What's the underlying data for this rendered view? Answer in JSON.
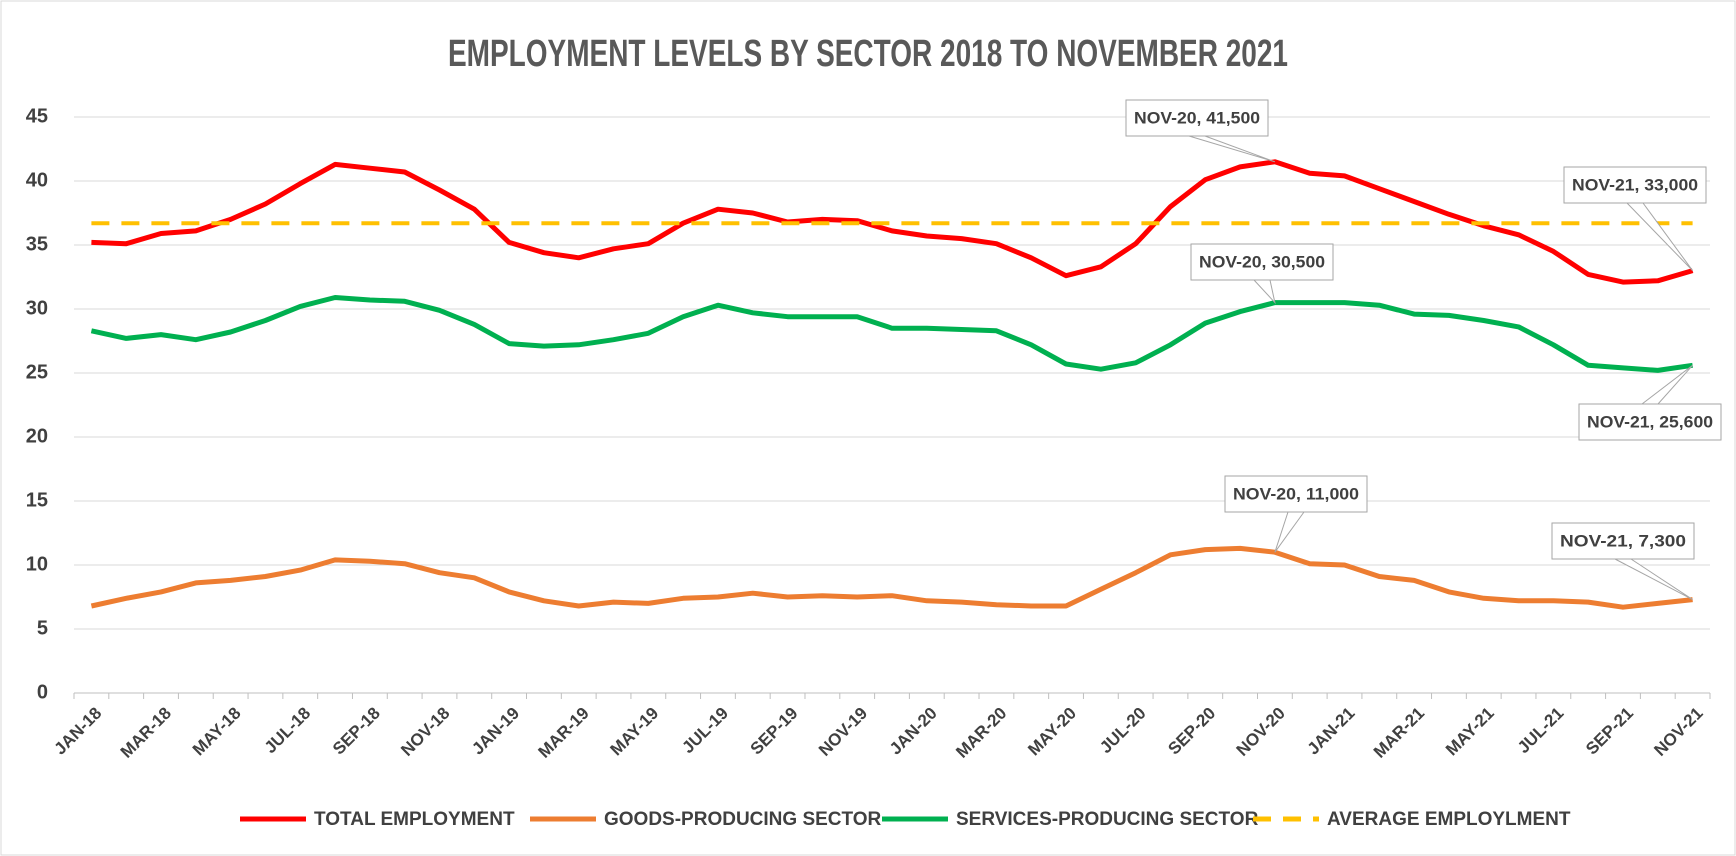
{
  "chart_data": {
    "type": "line",
    "title": "EMPLOYMENT LEVELS BY SECTOR 2018 TO NOVEMBER 2021",
    "categories": [
      "JAN-18",
      null,
      "MAR-18",
      null,
      "MAY-18",
      null,
      "JUL-18",
      null,
      "SEP-18",
      null,
      "NOV-18",
      null,
      "JAN-19",
      null,
      "MAR-19",
      null,
      "MAY-19",
      null,
      "JUL-19",
      null,
      "SEP-19",
      null,
      "NOV-19",
      null,
      "JAN-20",
      null,
      "MAR-20",
      null,
      "MAY-20",
      null,
      "JUL-20",
      null,
      "SEP-20",
      null,
      "NOV-20",
      null,
      "JAN-21",
      null,
      "MAR-21",
      null,
      "MAY-21",
      null,
      "JUL-21",
      null,
      "SEP-21",
      null,
      "NOV-21"
    ],
    "series": [
      {
        "name": "TOTAL EMPLOYMENT",
        "color": "#ff0000",
        "dashed": false,
        "values": [
          35.2,
          35.1,
          35.9,
          36.1,
          37.0,
          38.2,
          39.8,
          41.3,
          41.0,
          40.7,
          39.3,
          37.8,
          35.2,
          34.4,
          34.0,
          34.7,
          35.1,
          36.7,
          37.8,
          37.5,
          36.8,
          37.0,
          36.9,
          36.1,
          35.7,
          35.5,
          35.1,
          34.0,
          32.6,
          33.3,
          35.1,
          38.0,
          40.1,
          41.1,
          41.5,
          40.6,
          40.4,
          39.4,
          38.4,
          37.4,
          36.5,
          35.8,
          34.5,
          32.7,
          32.1,
          32.2,
          33.0
        ]
      },
      {
        "name": "GOODS-PRODUCING SECTOR",
        "color": "#ed7d31",
        "dashed": false,
        "values": [
          6.8,
          7.4,
          7.9,
          8.6,
          8.8,
          9.1,
          9.6,
          10.4,
          10.3,
          10.1,
          9.4,
          9.0,
          7.9,
          7.2,
          6.8,
          7.1,
          7.0,
          7.4,
          7.5,
          7.8,
          7.5,
          7.6,
          7.5,
          7.6,
          7.2,
          7.1,
          6.9,
          6.8,
          6.8,
          8.1,
          9.4,
          10.8,
          11.2,
          11.3,
          11.0,
          10.1,
          10.0,
          9.1,
          8.8,
          7.9,
          7.4,
          7.2,
          7.2,
          7.1,
          6.7,
          7.0,
          7.3
        ]
      },
      {
        "name": "SERVICES-PRODUCING SECTOR",
        "color": "#00b050",
        "dashed": false,
        "values": [
          28.3,
          27.7,
          28.0,
          27.6,
          28.2,
          29.1,
          30.2,
          30.9,
          30.7,
          30.6,
          29.9,
          28.8,
          27.3,
          27.1,
          27.2,
          27.6,
          28.1,
          29.4,
          30.3,
          29.7,
          29.4,
          29.4,
          29.4,
          28.5,
          28.5,
          28.4,
          28.3,
          27.2,
          25.7,
          25.3,
          25.8,
          27.2,
          28.9,
          29.8,
          30.5,
          30.5,
          30.5,
          30.3,
          29.6,
          29.5,
          29.1,
          28.6,
          27.2,
          25.6,
          25.4,
          25.2,
          25.6
        ]
      },
      {
        "name": "AVERAGE EMPLOYLMENT",
        "color": "#ffc000",
        "dashed": true,
        "values": [
          36.7,
          36.7,
          36.7,
          36.7,
          36.7,
          36.7,
          36.7,
          36.7,
          36.7,
          36.7,
          36.7,
          36.7,
          36.7,
          36.7,
          36.7,
          36.7,
          36.7,
          36.7,
          36.7,
          36.7,
          36.7,
          36.7,
          36.7,
          36.7,
          36.7,
          36.7,
          36.7,
          36.7,
          36.7,
          36.7,
          36.7,
          36.7,
          36.7,
          36.7,
          36.7,
          36.7,
          36.7,
          36.7,
          36.7,
          36.7,
          36.7,
          36.7,
          36.7,
          36.7,
          36.7,
          36.7,
          36.7
        ]
      }
    ],
    "annotations": [
      "NOV-20, 41,500",
      "NOV-21,  33,000",
      "NOV-20, 30,500",
      "NOV-21, 25,600",
      "NOV-20, 11,000",
      "NOV-21, 7,300"
    ],
    "ylim": [
      0,
      45
    ],
    "yticks": [
      0,
      5,
      10,
      15,
      20,
      25,
      30,
      35,
      40,
      45
    ],
    "grid": true,
    "legend": "bottom"
  }
}
